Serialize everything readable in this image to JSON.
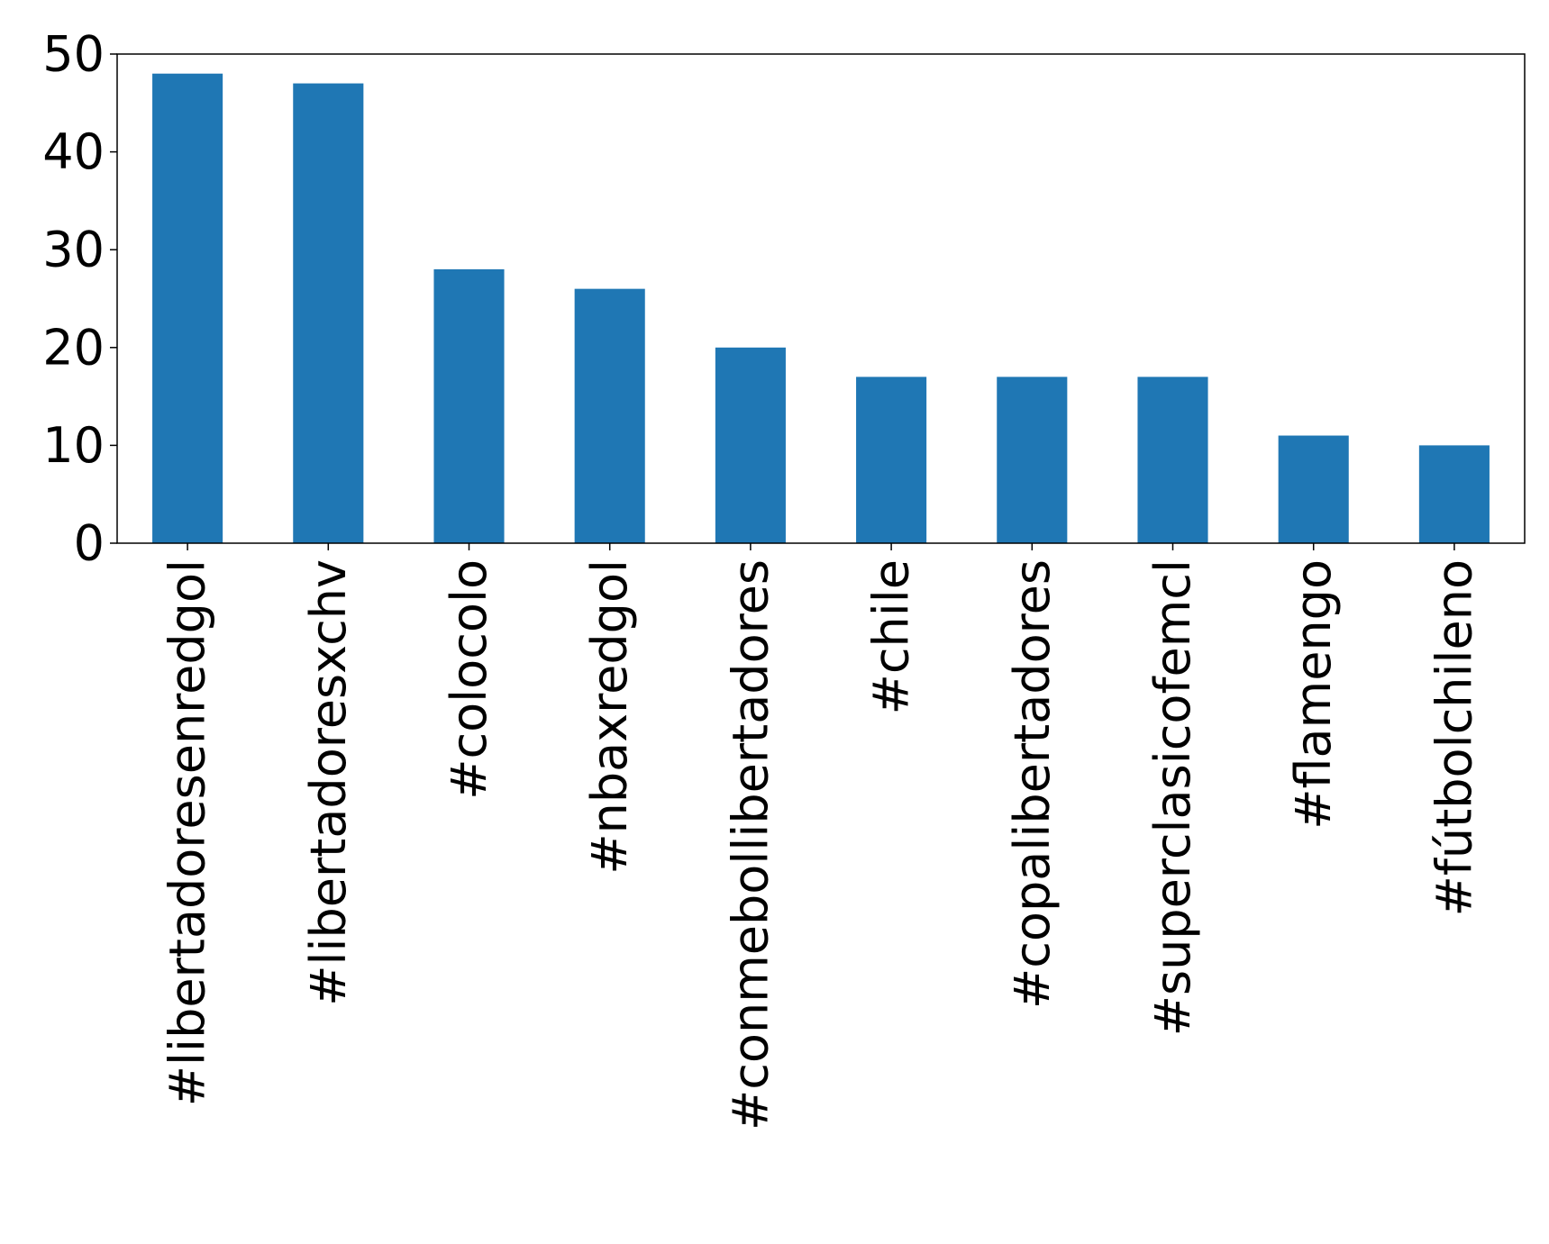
{
  "chart_data": {
    "type": "bar",
    "title": "",
    "xlabel": "",
    "ylabel": "",
    "categories": [
      "#libertadoresenredgol",
      "#libertadoresxchv",
      "#colocolo",
      "#nbaxredgol",
      "#conmebollibertadores",
      "#chile",
      "#copalibertadores",
      "#superclasicofemcl",
      "#flamengo",
      "#fútbolchileno"
    ],
    "values": [
      48,
      47,
      28,
      26,
      20,
      17,
      17,
      17,
      11,
      10
    ],
    "ylim": [
      0,
      50
    ],
    "yticks": [
      0,
      10,
      20,
      30,
      40,
      50
    ],
    "grid": false,
    "bar_color": "#1f77b4"
  }
}
